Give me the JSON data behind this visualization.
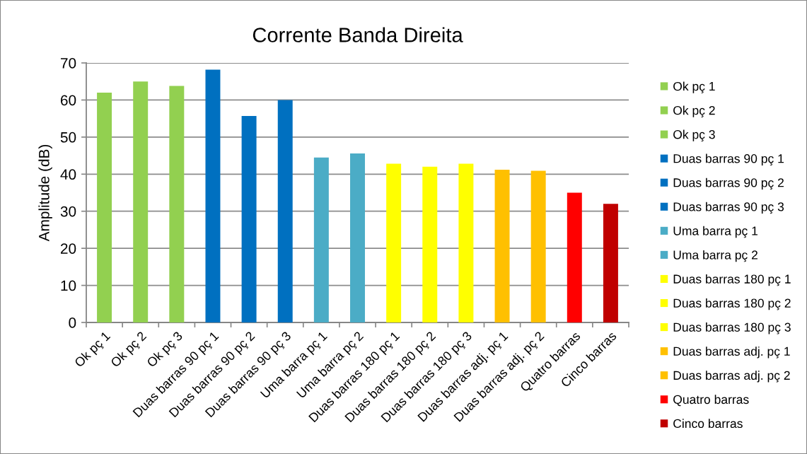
{
  "chart_data": {
    "type": "bar",
    "title": "Corrente Banda Direita",
    "ylabel": "Amplitude (dB)",
    "categories": [
      "Ok pç 1",
      "Ok pç 2",
      "Ok pç 3",
      "Duas barras 90 pç 1",
      "Duas barras 90 pç 2",
      "Duas barras 90 pç 3",
      "Uma barra pç 1",
      "Uma barra pç 2",
      "Duas barras 180 pç 1",
      "Duas barras 180 pç 2",
      "Duas barras 180 pç 3",
      "Duas barras adj. pç 1",
      "Duas barras adj. pç 2",
      "Quatro barras",
      "Cinco barras"
    ],
    "series": [
      {
        "name": "Ok pç 1",
        "color": "#92d050",
        "values": [
          62.0,
          null,
          null,
          null,
          null,
          null,
          null,
          null,
          null,
          null,
          null,
          null,
          null,
          null,
          null
        ]
      },
      {
        "name": "Ok pç 2",
        "color": "#92d050",
        "values": [
          null,
          65.0,
          null,
          null,
          null,
          null,
          null,
          null,
          null,
          null,
          null,
          null,
          null,
          null,
          null
        ]
      },
      {
        "name": "Ok pç 3",
        "color": "#92d050",
        "values": [
          null,
          null,
          63.8,
          null,
          null,
          null,
          null,
          null,
          null,
          null,
          null,
          null,
          null,
          null,
          null
        ]
      },
      {
        "name": "Duas barras 90 pç 1",
        "color": "#0070c0",
        "values": [
          null,
          null,
          null,
          68.2,
          null,
          null,
          null,
          null,
          null,
          null,
          null,
          null,
          null,
          null,
          null
        ]
      },
      {
        "name": "Duas barras 90 pç 2",
        "color": "#0070c0",
        "values": [
          null,
          null,
          null,
          null,
          55.7,
          null,
          null,
          null,
          null,
          null,
          null,
          null,
          null,
          null,
          null
        ]
      },
      {
        "name": "Duas barras 90 pç 3",
        "color": "#0070c0",
        "values": [
          null,
          null,
          null,
          null,
          null,
          60.0,
          null,
          null,
          null,
          null,
          null,
          null,
          null,
          null,
          null
        ]
      },
      {
        "name": "Uma barra pç 1",
        "color": "#4bacc6",
        "values": [
          null,
          null,
          null,
          null,
          null,
          null,
          44.5,
          null,
          null,
          null,
          null,
          null,
          null,
          null,
          null
        ]
      },
      {
        "name": "Uma barra pç 2",
        "color": "#4bacc6",
        "values": [
          null,
          null,
          null,
          null,
          null,
          null,
          null,
          45.6,
          null,
          null,
          null,
          null,
          null,
          null,
          null
        ]
      },
      {
        "name": "Duas barras 180 pç 1",
        "color": "#ffff00",
        "values": [
          null,
          null,
          null,
          null,
          null,
          null,
          null,
          null,
          42.8,
          null,
          null,
          null,
          null,
          null,
          null
        ]
      },
      {
        "name": "Duas barras 180 pç 2",
        "color": "#ffff00",
        "values": [
          null,
          null,
          null,
          null,
          null,
          null,
          null,
          null,
          null,
          42.0,
          null,
          null,
          null,
          null,
          null
        ]
      },
      {
        "name": "Duas barras 180 pç 3",
        "color": "#ffff00",
        "values": [
          null,
          null,
          null,
          null,
          null,
          null,
          null,
          null,
          null,
          null,
          42.8,
          null,
          null,
          null,
          null
        ]
      },
      {
        "name": "Duas barras adj. pç 1",
        "color": "#ffc000",
        "values": [
          null,
          null,
          null,
          null,
          null,
          null,
          null,
          null,
          null,
          null,
          null,
          41.2,
          null,
          null,
          null
        ]
      },
      {
        "name": "Duas barras adj. pç 2",
        "color": "#ffc000",
        "values": [
          null,
          null,
          null,
          null,
          null,
          null,
          null,
          null,
          null,
          null,
          null,
          null,
          40.9,
          null,
          null
        ]
      },
      {
        "name": "Quatro barras",
        "color": "#ff0000",
        "values": [
          null,
          null,
          null,
          null,
          null,
          null,
          null,
          null,
          null,
          null,
          null,
          null,
          null,
          35.0,
          null
        ]
      },
      {
        "name": "Cinco barras",
        "color": "#c00000",
        "values": [
          null,
          null,
          null,
          null,
          null,
          null,
          null,
          null,
          null,
          null,
          null,
          null,
          null,
          null,
          32.0
        ]
      }
    ],
    "ylim": [
      0,
      70
    ],
    "yticks": [
      0,
      10,
      20,
      30,
      40,
      50,
      60,
      70
    ],
    "grid": "y",
    "legend": "right"
  }
}
